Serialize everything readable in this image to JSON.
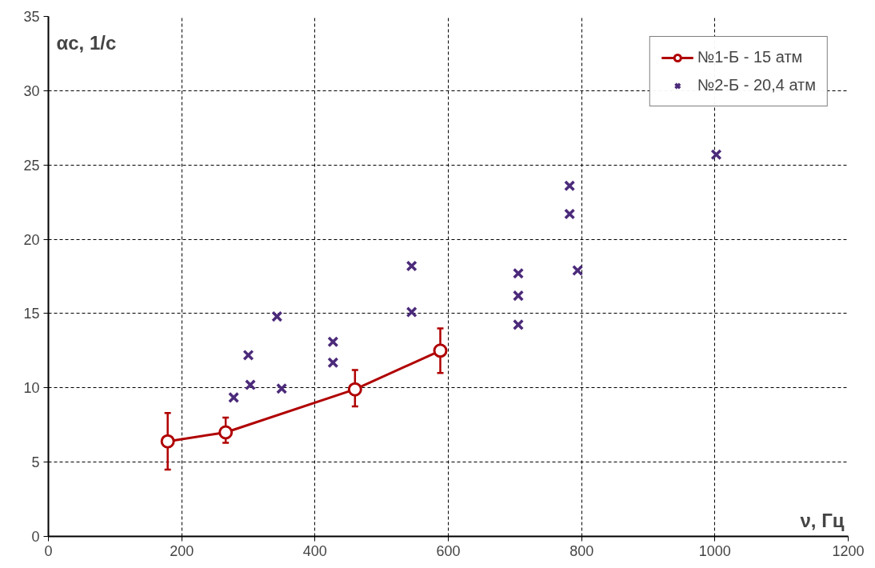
{
  "chart_data": {
    "type": "line",
    "xlabel": "ν, Гц",
    "ylabel": "αc, 1/с",
    "xlim": [
      0,
      1200
    ],
    "xticks": [
      0,
      200,
      400,
      600,
      800,
      1000,
      1200
    ],
    "ylim": [
      0,
      35
    ],
    "yticks": [
      0,
      5,
      10,
      15,
      20,
      25,
      30,
      35
    ],
    "grid": true,
    "legend": "top right",
    "series": [
      {
        "name": "№1-Б - 15 атм",
        "color": "#b00000",
        "marker": "circle",
        "line_style": "solid",
        "x": [
          179,
          266,
          460,
          588
        ],
        "values": [
          6.4,
          7.0,
          9.9,
          12.5
        ],
        "errors": [
          [
            4.5,
            8.3
          ],
          [
            6.3,
            8.0
          ],
          [
            8.75,
            11.2
          ],
          [
            11.0,
            14.0
          ]
        ]
      },
      {
        "name": "№2-Б - 20,4 атм",
        "type": "scatter",
        "color": "#4b2a7a",
        "marker": "cross",
        "x": [
          278,
          300,
          303,
          343,
          350,
          427,
          427,
          545,
          545,
          705,
          705,
          705,
          782,
          782,
          794,
          1002
        ],
        "values": [
          9.35,
          12.2,
          10.2,
          14.8,
          9.95,
          13.1,
          11.7,
          18.2,
          15.1,
          17.7,
          16.2,
          14.25,
          23.6,
          21.7,
          17.9,
          25.7
        ]
      }
    ]
  }
}
